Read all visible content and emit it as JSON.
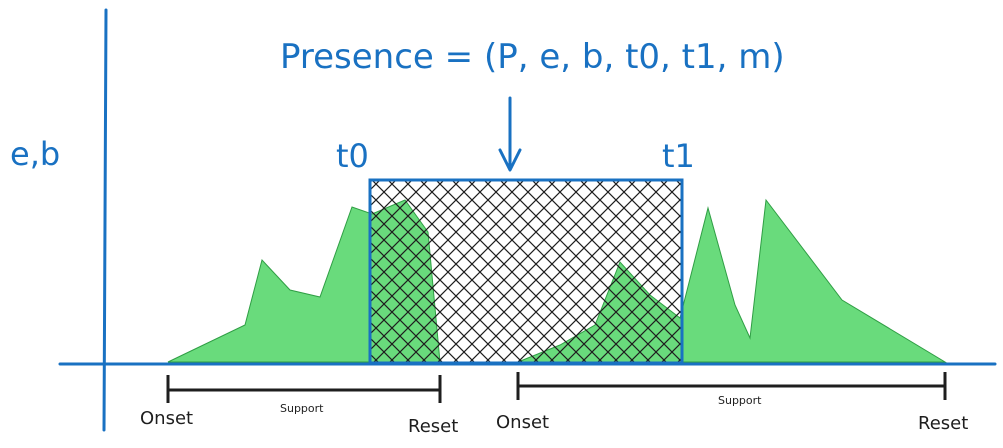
{
  "formula": "Presence = (P, e, b, t0, t1, m)",
  "y_axis_label": "e,b",
  "box_left_label": "t0",
  "box_right_label": "t1",
  "support_left": {
    "onset": "Onset",
    "support": "Support",
    "reset": "Reset"
  },
  "support_right": {
    "onset": "Onset",
    "support": "Support",
    "reset": "Reset"
  },
  "colors": {
    "blue": "#1971c2",
    "green_fill": "#69db7c",
    "green_stroke": "#2f9e44",
    "black": "#1e1e1e"
  }
}
